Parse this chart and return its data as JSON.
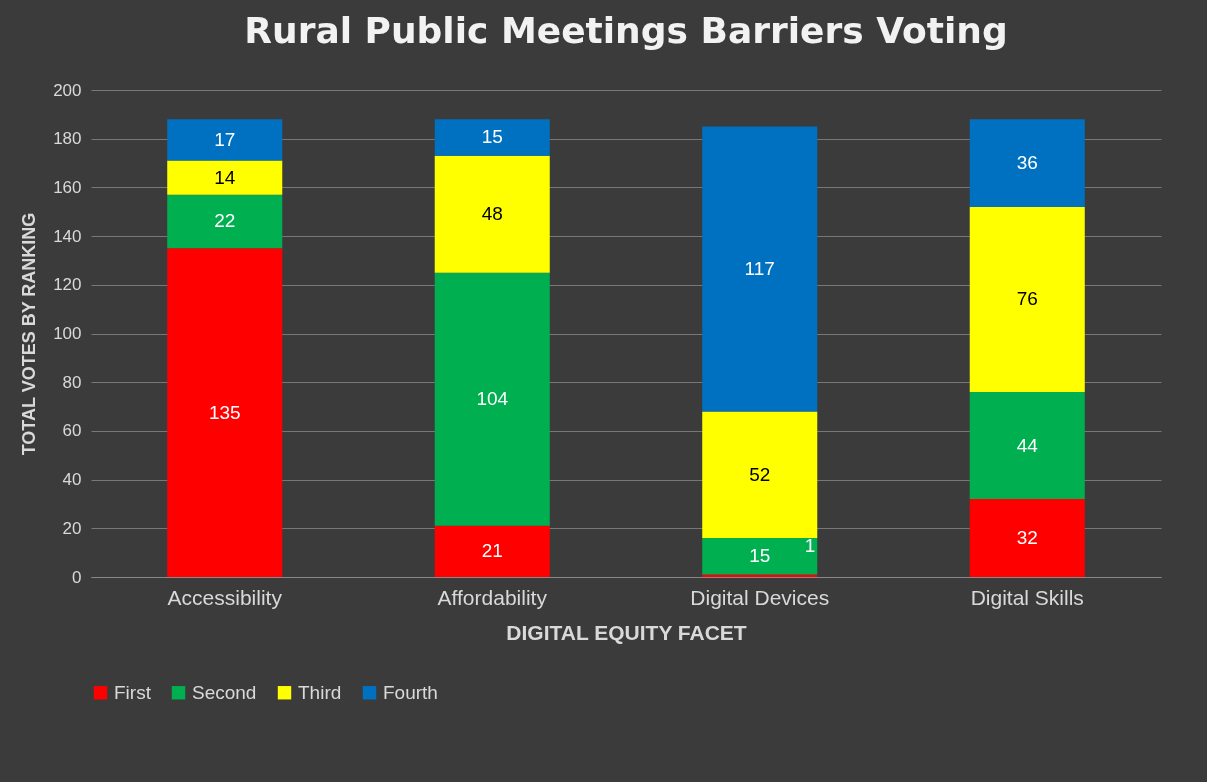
{
  "chart_data": {
    "type": "bar",
    "title": "Rural Public Meetings Barriers Voting",
    "xlabel": "DIGITAL EQUITY FACET",
    "ylabel": "TOTAL VOTES BY RANKING",
    "categories": [
      "Accessibility",
      "Affordability",
      "Digital Devices",
      "Digital Skills"
    ],
    "series": [
      {
        "name": "First",
        "color": "#ff0000",
        "values": [
          135,
          21,
          1,
          32
        ]
      },
      {
        "name": "Second",
        "color": "#00b050",
        "values": [
          22,
          104,
          15,
          44
        ]
      },
      {
        "name": "Third",
        "color": "#ffff00",
        "values": [
          14,
          48,
          52,
          76
        ]
      },
      {
        "name": "Fourth",
        "color": "#0070c0",
        "values": [
          17,
          15,
          117,
          36
        ]
      }
    ],
    "stacked": true,
    "data_labels": true,
    "ylim": [
      0,
      200
    ],
    "yticks": [
      0,
      20,
      40,
      60,
      80,
      100,
      120,
      140,
      160,
      180,
      200
    ],
    "grid": "y",
    "legend": "bottom"
  }
}
